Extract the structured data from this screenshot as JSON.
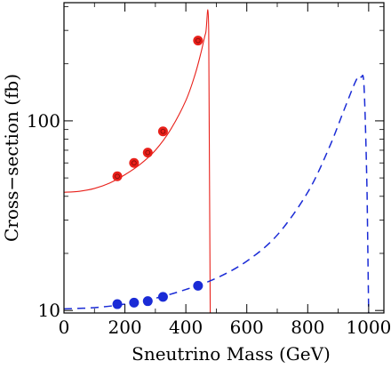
{
  "chart_data": {
    "type": "scatter",
    "title": "",
    "xlabel": "Sneutrino Mass (GeV)",
    "ylabel": "Cross−section (fb)",
    "xlim": [
      0,
      1050
    ],
    "ylim": [
      9.7,
      420
    ],
    "y_scale": "log",
    "grid": false,
    "legend": "none",
    "x_ticks": [
      0,
      200,
      400,
      600,
      800,
      1000
    ],
    "x_tick_labels": [
      "0",
      "200",
      "400",
      "600",
      "800",
      "1000"
    ],
    "y_ticks": [
      10,
      100
    ],
    "y_tick_labels": [
      "10",
      "100"
    ],
    "series": [
      {
        "style": "solid",
        "color": "#e8201a",
        "curve": [
          [
            0,
            42
          ],
          [
            50,
            42.5
          ],
          [
            100,
            44
          ],
          [
            150,
            47
          ],
          [
            200,
            52
          ],
          [
            250,
            59
          ],
          [
            300,
            70
          ],
          [
            350,
            90
          ],
          [
            400,
            128
          ],
          [
            430,
            175
          ],
          [
            450,
            230
          ],
          [
            465,
            290
          ],
          [
            475,
            300
          ],
          [
            480,
            10
          ],
          [
            480,
            9.7
          ]
        ],
        "points": [
          [
            175,
            51
          ],
          [
            230,
            60
          ],
          [
            275,
            68
          ],
          [
            325,
            88
          ],
          [
            440,
            265
          ]
        ]
      },
      {
        "style": "dashed",
        "color": "#1a2bd6",
        "curve": [
          [
            0,
            10.2
          ],
          [
            100,
            10.35
          ],
          [
            200,
            10.8
          ],
          [
            300,
            11.6
          ],
          [
            400,
            12.9
          ],
          [
            500,
            14.8
          ],
          [
            600,
            18.2
          ],
          [
            700,
            25
          ],
          [
            800,
            42
          ],
          [
            870,
            72
          ],
          [
            920,
            115
          ],
          [
            960,
            165
          ],
          [
            975,
            170
          ],
          [
            985,
            150
          ],
          [
            995,
            40
          ],
          [
            1000,
            9.7
          ]
        ],
        "points": [
          [
            175,
            10.8
          ],
          [
            230,
            11.0
          ],
          [
            275,
            11.2
          ],
          [
            325,
            11.8
          ],
          [
            440,
            13.5
          ]
        ]
      }
    ]
  }
}
